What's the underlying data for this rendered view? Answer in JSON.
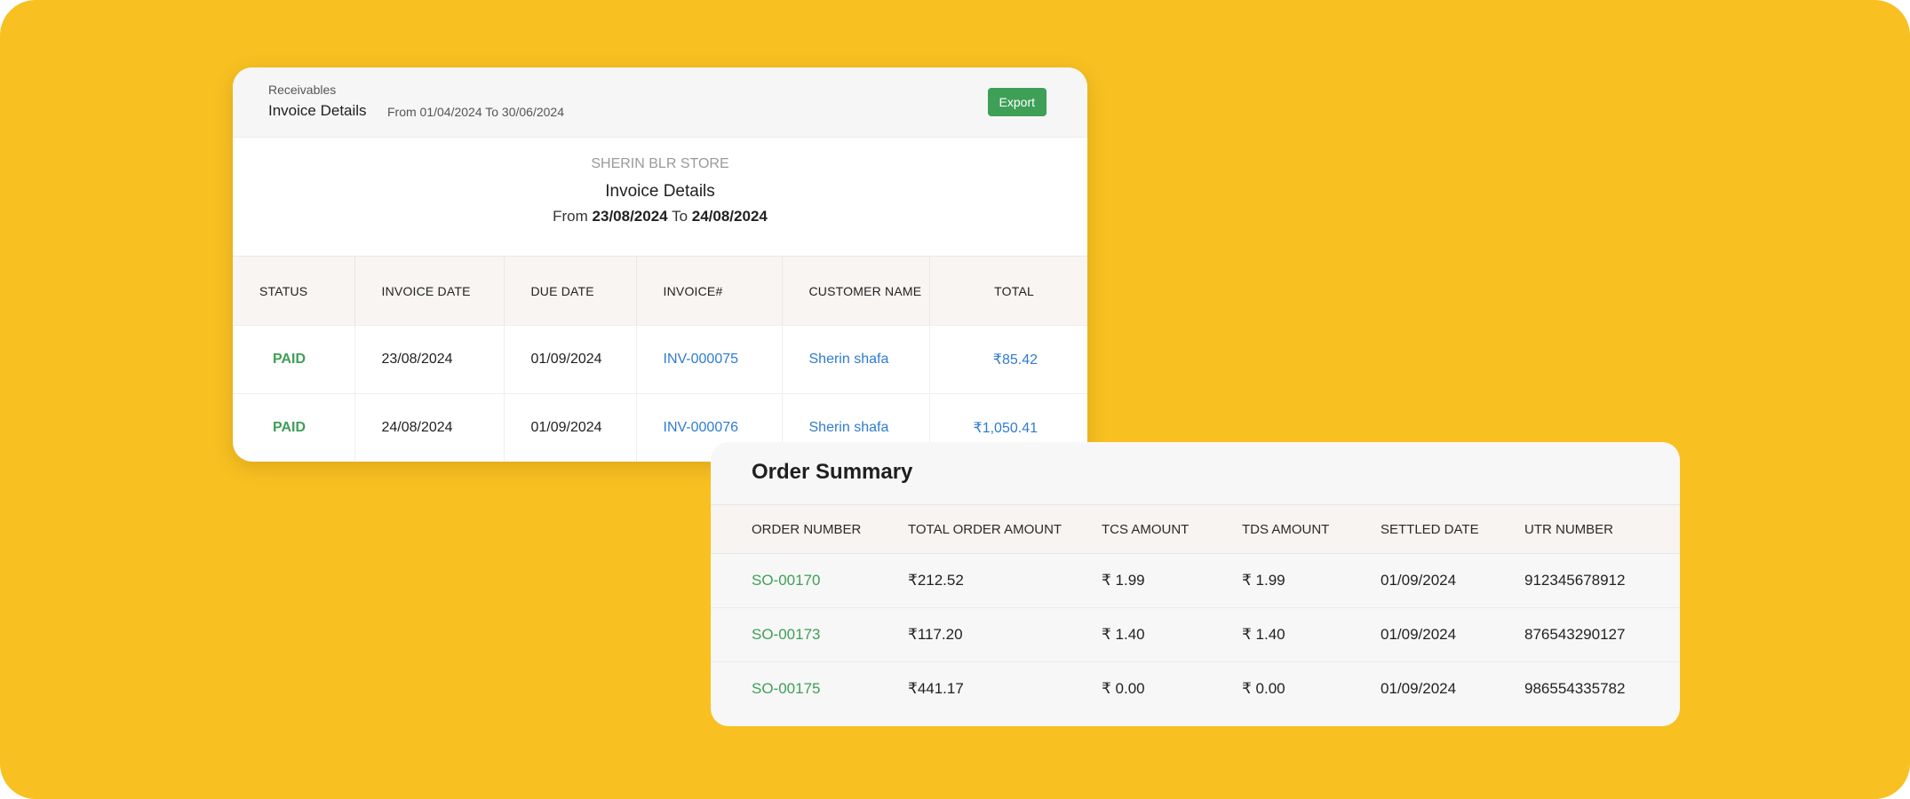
{
  "invoice_panel": {
    "section_label": "Receivables",
    "title": "Invoice Details",
    "date_range": "From 01/04/2024 To 30/06/2024",
    "export_label": "Export",
    "report": {
      "store_name": "SHERIN BLR STORE",
      "title": "Invoice Details",
      "from_word": "From",
      "from_date": "23/08/2024",
      "to_word": "To",
      "to_date": "24/08/2024"
    },
    "columns": [
      "STATUS",
      "INVOICE DATE",
      "DUE DATE",
      "INVOICE#",
      "CUSTOMER NAME",
      "TOTAL"
    ],
    "rows": [
      {
        "status": "PAID",
        "invoice_date": "23/08/2024",
        "due_date": "01/09/2024",
        "invoice_no": "INV-000075",
        "customer": "Sherin shafa",
        "total": "₹85.42"
      },
      {
        "status": "PAID",
        "invoice_date": "24/08/2024",
        "due_date": "01/09/2024",
        "invoice_no": "INV-000076",
        "customer": "Sherin shafa",
        "total": "₹1,050.41"
      }
    ]
  },
  "order_summary": {
    "title": "Order Summary",
    "columns": [
      "ORDER NUMBER",
      "TOTAL ORDER AMOUNT",
      "TCS AMOUNT",
      "TDS AMOUNT",
      "SETTLED DATE",
      "UTR NUMBER"
    ],
    "rows": [
      {
        "order_no": "SO-00170",
        "total_amount": "₹212.52",
        "tcs": "₹ 1.99",
        "tds": "₹ 1.99",
        "settled": "01/09/2024",
        "utr": "912345678912"
      },
      {
        "order_no": "SO-00173",
        "total_amount": "₹117.20",
        "tcs": "₹ 1.40",
        "tds": "₹ 1.40",
        "settled": "01/09/2024",
        "utr": "876543290127"
      },
      {
        "order_no": "SO-00175",
        "total_amount": "₹441.17",
        "tcs": "₹ 0.00",
        "tds": "₹ 0.00",
        "settled": "01/09/2024",
        "utr": "986554335782"
      }
    ]
  },
  "colors": {
    "background": "#f8c021",
    "accent_green": "#3e9f57",
    "link_blue": "#2f7bd1"
  }
}
